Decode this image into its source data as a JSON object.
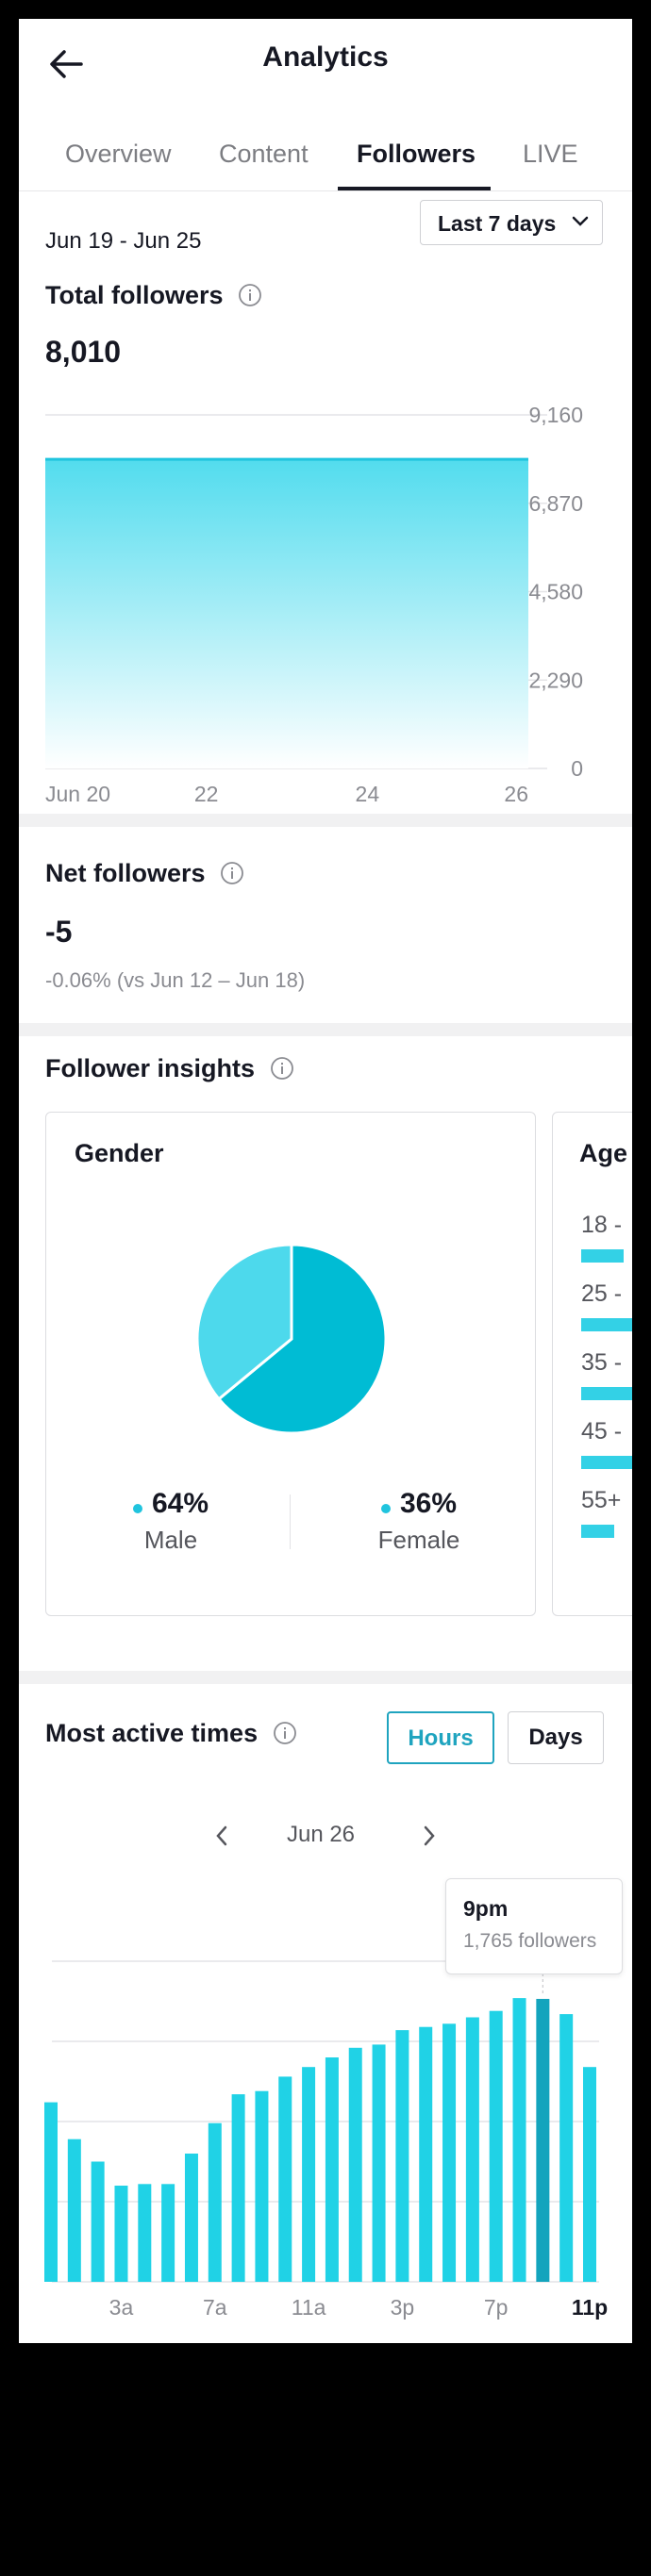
{
  "app": {
    "title": "Analytics"
  },
  "tabs": [
    {
      "label": "Overview",
      "active": false
    },
    {
      "label": "Content",
      "active": false
    },
    {
      "label": "Followers",
      "active": true
    },
    {
      "label": "LIVE",
      "active": false
    }
  ],
  "filter": {
    "date_range": "Jun 19 - Jun 25",
    "period": "Last 7 days"
  },
  "total_followers": {
    "title": "Total followers",
    "value": "8,010",
    "chart_data": {
      "type": "area",
      "x_ticks": [
        "Jun 20",
        "22",
        "24",
        "26"
      ],
      "y_ticks": [
        "9,160",
        "6,870",
        "4,580",
        "2,290",
        "0"
      ],
      "ylim": [
        0,
        9160
      ],
      "x": [
        "Jun 20",
        "Jun 21",
        "Jun 22",
        "Jun 23",
        "Jun 24",
        "Jun 25",
        "Jun 26"
      ],
      "values": [
        8010,
        8010,
        8010,
        8010,
        8010,
        8010,
        8010
      ],
      "color": "#20c4de"
    }
  },
  "net_followers": {
    "title": "Net followers",
    "value": "-5",
    "comparison": "-0.06% (vs Jun 12 – Jun 18)"
  },
  "insights": {
    "title": "Follower insights",
    "gender": {
      "title": "Gender",
      "chart_data": {
        "type": "pie",
        "slices": [
          {
            "label": "Male",
            "value": 64,
            "display": "64%",
            "color": "#00bcd4"
          },
          {
            "label": "Female",
            "value": 36,
            "display": "36%",
            "color": "#4dd9ec"
          }
        ]
      }
    },
    "age": {
      "title": "Age",
      "rows": [
        "18 -",
        "25 -",
        "35 -",
        "45 -",
        "55+"
      ],
      "levels": [
        0.45,
        1.0,
        1.0,
        1.0,
        0.35
      ]
    }
  },
  "active_times": {
    "title": "Most active times",
    "toggle": {
      "hours": "Hours",
      "days": "Days",
      "selected": "Hours"
    },
    "date": "Jun 26",
    "tooltip": {
      "time": "9pm",
      "followers": "1,765 followers"
    },
    "chart_data": {
      "type": "bar",
      "categories": [
        "12a",
        "1a",
        "2a",
        "3a",
        "4a",
        "5a",
        "6a",
        "7a",
        "8a",
        "9a",
        "10a",
        "11a",
        "12p",
        "1p",
        "2p",
        "3p",
        "4p",
        "5p",
        "6p",
        "7p",
        "8p",
        "9p",
        "10p",
        "11p"
      ],
      "x_tick_labels": [
        "3a",
        "7a",
        "11a",
        "3p",
        "7p",
        "11p"
      ],
      "values": [
        1120,
        890,
        750,
        600,
        610,
        610,
        800,
        990,
        1170,
        1190,
        1280,
        1340,
        1400,
        1460,
        1480,
        1570,
        1590,
        1610,
        1650,
        1690,
        1770,
        1765,
        1670,
        1340
      ],
      "highlight_index": 21,
      "ylim": [
        0,
        2000
      ],
      "grid": true,
      "color": "#20d2e6",
      "highlight_color": "#13a4bd"
    }
  },
  "colors": {
    "accent": "#20c4de",
    "toggle_active": "#1fa4bf"
  }
}
